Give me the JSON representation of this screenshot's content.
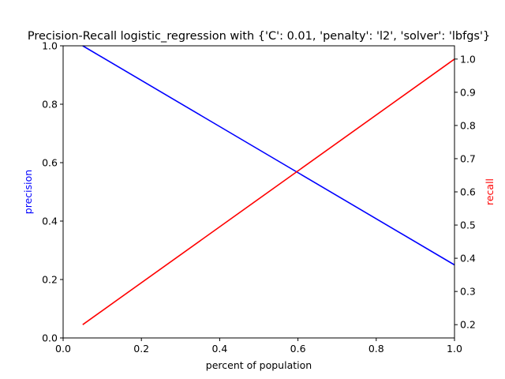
{
  "chart_data": {
    "type": "line",
    "title": "Precision-Recall logistic_regression with {'C': 0.01, 'penalty': 'l2', 'solver': 'lbfgs'}",
    "xlabel": "percent of population",
    "ylabel_left": "precision",
    "ylabel_right": "recall",
    "xlim": [
      0.0,
      1.0
    ],
    "ylim_left": [
      0.0,
      1.0
    ],
    "ylim_right": [
      0.16,
      1.04
    ],
    "x_ticks": [
      "0.0",
      "0.2",
      "0.4",
      "0.6",
      "0.8",
      "1.0"
    ],
    "y_left_ticks": [
      "0.0",
      "0.2",
      "0.4",
      "0.6",
      "0.8",
      "1.0"
    ],
    "y_right_ticks": [
      "0.2",
      "0.3",
      "0.4",
      "0.5",
      "0.6",
      "0.7",
      "0.8",
      "0.9",
      "1.0"
    ],
    "grid": false,
    "series": [
      {
        "axis": "left",
        "color": "#0000ff",
        "x": [
          0.05,
          1.0
        ],
        "y": [
          1.0,
          0.25
        ]
      },
      {
        "axis": "right",
        "color": "#ff0000",
        "x": [
          0.05,
          1.0
        ],
        "y": [
          0.2,
          1.0
        ]
      }
    ],
    "colors": {
      "left_label": "#0000ff",
      "right_label": "#ff0000"
    }
  }
}
